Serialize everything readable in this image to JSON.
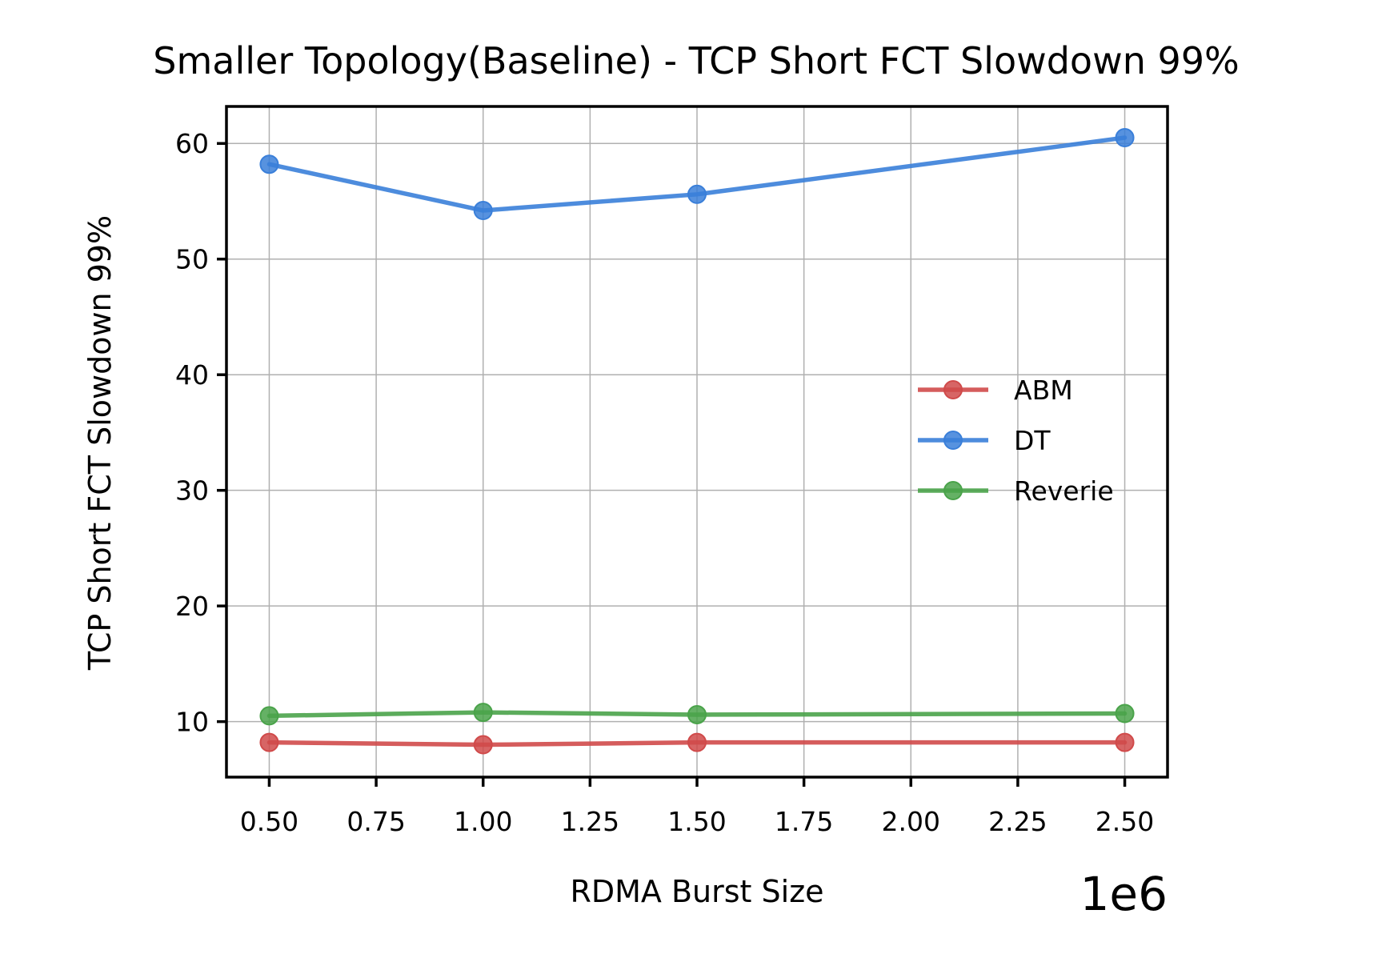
{
  "chart_data": {
    "type": "line",
    "title": "Smaller Topology(Baseline) - TCP Short FCT Slowdown 99%",
    "xlabel": "RDMA Burst Size",
    "ylabel": "TCP Short FCT Slowdown 99%",
    "x_offset_label": "1e6",
    "x": [
      0.5,
      1.0,
      1.5,
      2.5
    ],
    "x_scale_multiplier": 1000000,
    "xlim": [
      0.4,
      2.6
    ],
    "ylim": [
      5.2,
      63.2
    ],
    "xticks": [
      0.5,
      0.75,
      1.0,
      1.25,
      1.5,
      1.75,
      2.0,
      2.25,
      2.5
    ],
    "xtick_labels": [
      "0.50",
      "0.75",
      "1.00",
      "1.25",
      "1.50",
      "1.75",
      "2.00",
      "2.25",
      "2.50"
    ],
    "yticks": [
      10,
      20,
      30,
      40,
      50,
      60
    ],
    "ytick_labels": [
      "10",
      "20",
      "30",
      "40",
      "50",
      "60"
    ],
    "grid": true,
    "legend_position": "center-right",
    "series": [
      {
        "name": "ABM",
        "color": "#d04a4a",
        "values": [
          8.2,
          8.0,
          8.2,
          8.2
        ]
      },
      {
        "name": "DT",
        "color": "#3a7fd9",
        "values": [
          58.2,
          54.2,
          55.6,
          60.5
        ]
      },
      {
        "name": "Reverie",
        "color": "#4aa34a",
        "values": [
          10.5,
          10.8,
          10.6,
          10.7
        ]
      }
    ]
  }
}
